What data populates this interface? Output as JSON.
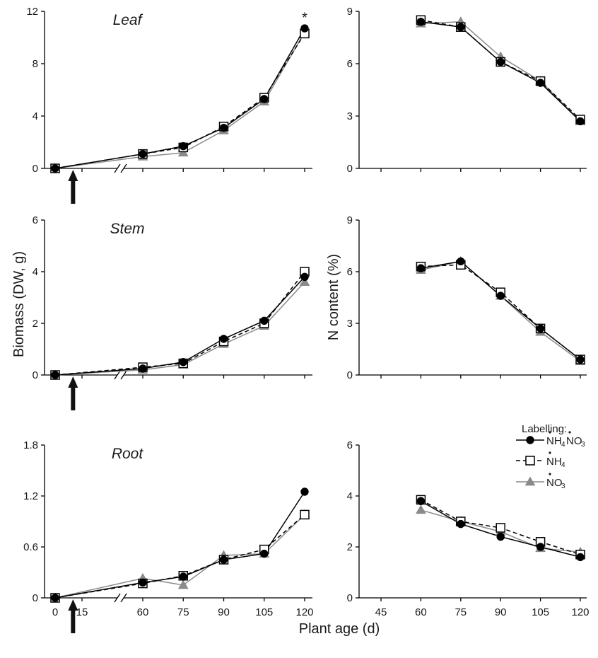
{
  "figure": {
    "ylabel_left": "Biomass (DW, g)",
    "ylabel_right": "N content (%)",
    "xlabel": "Plant age (d)"
  },
  "legend": {
    "title": "Labelling:",
    "items": [
      {
        "label": "NH4NO3",
        "parts": [
          [
            "N",
            "NH"
          ],
          [
            "sub",
            "4"
          ],
          [
            "N",
            "NO"
          ],
          [
            "sub",
            "3"
          ]
        ],
        "color": "#000000",
        "marker": "circle",
        "dash": "solid"
      },
      {
        "label": "NH4",
        "parts": [
          [
            "N",
            "NH"
          ],
          [
            "sub",
            "4"
          ]
        ],
        "color": "#000000",
        "marker": "square",
        "dash": "dashed"
      },
      {
        "label": "NO3",
        "parts": [
          [
            "N",
            "NO"
          ],
          [
            "sub",
            "3"
          ]
        ],
        "color": "#7f7f7f",
        "marker": "triangle",
        "dash": "solid"
      }
    ]
  },
  "chart_data": [
    {
      "type": "line",
      "id": "biomass-leaf",
      "title": "Leaf",
      "ylabel": "Biomass (DW, g)",
      "x_ticks": [
        0,
        15,
        60,
        75,
        90,
        105,
        120
      ],
      "x_ticks_shown": false,
      "broken_axis": true,
      "ylim": [
        0,
        12
      ],
      "yticks": [
        "0",
        "4",
        "8",
        "12"
      ],
      "annotations": [
        {
          "text": "*",
          "x": 120,
          "y": 11.5
        }
      ],
      "arrow_at_x": 10,
      "series": [
        {
          "name": "NH4NO3",
          "x": [
            0,
            60,
            75,
            90,
            105,
            120
          ],
          "y": [
            0,
            1.1,
            1.7,
            3.1,
            5.3,
            10.7
          ]
        },
        {
          "name": "NH4",
          "x": [
            0,
            60,
            75,
            90,
            105,
            120
          ],
          "y": [
            0,
            1.1,
            1.6,
            3.2,
            5.4,
            10.3
          ]
        },
        {
          "name": "NO3",
          "x": [
            0,
            60,
            75,
            90,
            105,
            120
          ],
          "y": [
            0,
            0.9,
            1.2,
            2.9,
            5.1,
            10.4
          ]
        }
      ]
    },
    {
      "type": "line",
      "id": "ncontent-leaf",
      "ylabel": "N content (%)",
      "x_ticks": [
        45,
        60,
        75,
        90,
        105,
        120
      ],
      "x_ticks_shown": false,
      "ylim": [
        0,
        9
      ],
      "yticks": [
        "0",
        "3",
        "6",
        "9"
      ],
      "series": [
        {
          "name": "NH4NO3",
          "x": [
            60,
            75,
            90,
            105,
            120
          ],
          "y": [
            8.4,
            8.1,
            6.1,
            4.9,
            2.7
          ]
        },
        {
          "name": "NH4",
          "x": [
            60,
            75,
            90,
            105,
            120
          ],
          "y": [
            8.5,
            8.1,
            6.1,
            5.0,
            2.8
          ]
        },
        {
          "name": "NO3",
          "x": [
            60,
            75,
            90,
            105,
            120
          ],
          "y": [
            8.3,
            8.4,
            6.4,
            5.0,
            2.7
          ]
        }
      ]
    },
    {
      "type": "line",
      "id": "biomass-stem",
      "title": "Stem",
      "ylabel": "Biomass (DW, g)",
      "x_ticks": [
        0,
        15,
        60,
        75,
        90,
        105,
        120
      ],
      "x_ticks_shown": false,
      "broken_axis": true,
      "ylim": [
        0,
        6
      ],
      "yticks": [
        "0",
        "2",
        "4",
        "6"
      ],
      "arrow_at_x": 10,
      "series": [
        {
          "name": "NH4NO3",
          "x": [
            0,
            60,
            75,
            90,
            105,
            120
          ],
          "y": [
            0,
            0.25,
            0.5,
            1.4,
            2.1,
            3.8
          ]
        },
        {
          "name": "NH4",
          "x": [
            0,
            60,
            75,
            90,
            105,
            120
          ],
          "y": [
            0,
            0.3,
            0.45,
            1.3,
            2.0,
            4.0
          ]
        },
        {
          "name": "NO3",
          "x": [
            0,
            60,
            75,
            90,
            105,
            120
          ],
          "y": [
            0,
            0.2,
            0.4,
            1.2,
            1.9,
            3.6
          ]
        }
      ]
    },
    {
      "type": "line",
      "id": "ncontent-stem",
      "ylabel": "N content (%)",
      "x_ticks": [
        45,
        60,
        75,
        90,
        105,
        120
      ],
      "x_ticks_shown": false,
      "ylim": [
        0,
        9
      ],
      "yticks": [
        "0",
        "3",
        "6",
        "9"
      ],
      "series": [
        {
          "name": "NH4NO3",
          "x": [
            60,
            75,
            90,
            105,
            120
          ],
          "y": [
            6.2,
            6.6,
            4.6,
            2.7,
            0.9
          ]
        },
        {
          "name": "NH4",
          "x": [
            60,
            75,
            90,
            105,
            120
          ],
          "y": [
            6.3,
            6.4,
            4.8,
            2.7,
            0.9
          ]
        },
        {
          "name": "NO3",
          "x": [
            60,
            75,
            90,
            105,
            120
          ],
          "y": [
            6.1,
            6.6,
            4.6,
            2.5,
            0.8
          ]
        }
      ]
    },
    {
      "type": "line",
      "id": "biomass-root",
      "title": "Root",
      "ylabel": "Biomass (DW, g)",
      "x_ticks": [
        0,
        15,
        60,
        75,
        90,
        105,
        120
      ],
      "x_tick_labels": [
        "0",
        "15",
        "60",
        "75",
        "90",
        "105",
        "120"
      ],
      "broken_axis": true,
      "ylim": [
        0,
        1.8
      ],
      "yticks": [
        "0",
        "0.6",
        "1.2",
        "1.8"
      ],
      "arrow_at_x": 10,
      "series": [
        {
          "name": "NH4NO3",
          "x": [
            0,
            60,
            75,
            90,
            105,
            120
          ],
          "y": [
            0,
            0.18,
            0.25,
            0.45,
            0.52,
            1.25
          ]
        },
        {
          "name": "NH4",
          "x": [
            0,
            60,
            75,
            90,
            105,
            120
          ],
          "y": [
            0,
            0.17,
            0.26,
            0.45,
            0.57,
            0.98
          ]
        },
        {
          "name": "NO3",
          "x": [
            0,
            60,
            75,
            90,
            105,
            120
          ],
          "y": [
            0,
            0.23,
            0.15,
            0.5,
            0.52,
            0.98
          ]
        }
      ]
    },
    {
      "type": "line",
      "id": "ncontent-root",
      "ylabel": "N content (%)",
      "x_ticks": [
        45,
        60,
        75,
        90,
        105,
        120
      ],
      "x_tick_labels": [
        "45",
        "60",
        "75",
        "90",
        "105",
        "120"
      ],
      "ylim": [
        0,
        6
      ],
      "yticks": [
        "0",
        "2",
        "4",
        "6"
      ],
      "series": [
        {
          "name": "NH4NO3",
          "x": [
            60,
            75,
            90,
            105,
            120
          ],
          "y": [
            3.8,
            2.9,
            2.4,
            2.0,
            1.6
          ]
        },
        {
          "name": "NH4",
          "x": [
            60,
            75,
            90,
            105,
            120
          ],
          "y": [
            3.85,
            3.0,
            2.75,
            2.2,
            1.7
          ]
        },
        {
          "name": "NO3",
          "x": [
            60,
            75,
            90,
            105,
            120
          ],
          "y": [
            3.45,
            3.0,
            2.6,
            1.95,
            1.8
          ]
        }
      ]
    }
  ]
}
